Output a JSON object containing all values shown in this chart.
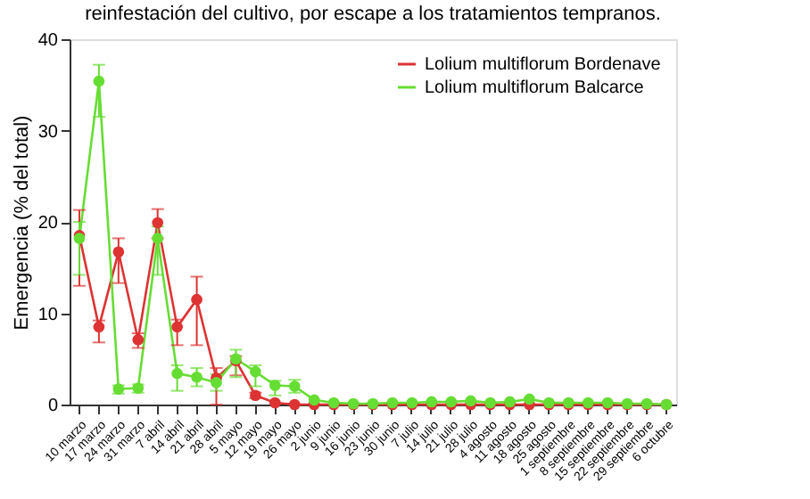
{
  "chart_data": {
    "type": "line",
    "title": "reinfestación del cultivo, por escape a los tratamientos tempranos.",
    "ylabel": "Emergencia (% del total)",
    "categories": [
      "10 marzo",
      "17 marzo",
      "24 marzo",
      "31 marzo",
      "7 abril",
      "14 abril",
      "21 abril",
      "28 abril",
      "5 mayo",
      "12 mayo",
      "19 mayo",
      "26 mayo",
      "2 junio",
      "9 junio",
      "16 junio",
      "23 junio",
      "30 junio",
      "7 julio",
      "14 julio",
      "21 julio",
      "28 julio",
      "4 agosto",
      "11 agosto",
      "18 agosto",
      "25 agosto",
      "1 septiembre",
      "8 septiembre",
      "15 septiembre",
      "22 septiembre",
      "29 septiembre",
      "6 octubre"
    ],
    "series": [
      {
        "name": "Lolium multiflorum Bordenave",
        "color": "#dd3333",
        "values": [
          18.5,
          8.5,
          16.7,
          7.1,
          19.9,
          8.5,
          11.5,
          2.9,
          4.8,
          1.0,
          0.2,
          0.0,
          0.0,
          0.0,
          0.0,
          0.0,
          0.0,
          0.0,
          0.0,
          0.0,
          0.0,
          0.0,
          0.0,
          0.0,
          0.0,
          0.0,
          0.0,
          0.0,
          0.0,
          0.0,
          0.0
        ],
        "errors": [
          [
            13,
            21.3
          ],
          [
            6.8,
            9.2
          ],
          [
            13.3,
            18.2
          ],
          [
            6.2,
            7.8
          ],
          [
            18.2,
            21.4
          ],
          [
            6.5,
            9.3
          ],
          [
            6.5,
            14
          ],
          [
            0,
            4
          ],
          [
            3.2,
            5.3
          ],
          [
            0.7,
            1.3
          ],
          null,
          null,
          null,
          null,
          null,
          null,
          null,
          null,
          null,
          null,
          null,
          null,
          null,
          null,
          null,
          null,
          null,
          null,
          null,
          null,
          null
        ]
      },
      {
        "name": "Lolium multiflorum Balcarce",
        "color": "#66dd33",
        "values": [
          18.2,
          35.4,
          1.7,
          1.8,
          18.2,
          3.4,
          3.0,
          2.4,
          5.0,
          3.6,
          2.1,
          2.0,
          0.5,
          0.2,
          0.1,
          0.1,
          0.2,
          0.2,
          0.3,
          0.3,
          0.4,
          0.2,
          0.3,
          0.6,
          0.2,
          0.2,
          0.2,
          0.2,
          0.1,
          0.1,
          0.0
        ],
        "errors": [
          [
            14.2,
            20
          ],
          [
            31.5,
            37.2
          ],
          [
            1.2,
            2.1
          ],
          [
            1.3,
            2.2
          ],
          [
            14.2,
            19.5
          ],
          [
            1.5,
            4.3
          ],
          [
            2,
            4
          ],
          [
            1.5,
            3.3
          ],
          [
            3,
            6
          ],
          [
            2,
            4.3
          ],
          [
            1,
            2.6
          ],
          [
            1.3,
            2.7
          ],
          null,
          null,
          null,
          null,
          null,
          null,
          null,
          null,
          null,
          null,
          null,
          null,
          null,
          null,
          null,
          null,
          null,
          null,
          null
        ]
      }
    ],
    "ylim": [
      0,
      40
    ],
    "yticks": [
      0,
      10,
      20,
      30,
      40
    ],
    "grid": false,
    "legend": "top right",
    "marker": "circle",
    "line_style": "solid"
  }
}
